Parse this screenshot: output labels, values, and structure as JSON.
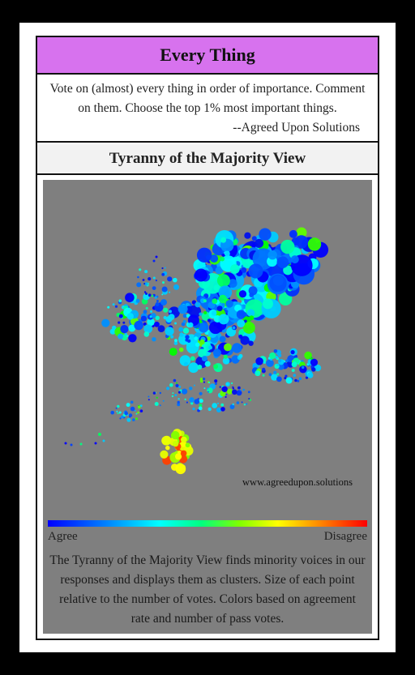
{
  "header": {
    "title": "Every Thing"
  },
  "intro": {
    "text": "Vote on (almost) every thing in order of importance. Comment on them. Choose the top 1% most important things.",
    "attribution": "--Agreed Upon Solutions"
  },
  "view": {
    "title": "Tyranny of the Majority View",
    "watermark": "www.agreedupon.solutions",
    "legend": {
      "left_label": "Agree",
      "right_label": "Disagree"
    },
    "explanation": "The Tyranny of the Majority View finds minority voices in our responses and displays them as clusters. Size of each point relative to the number of votes. Colors based on agreement rate and number of pass votes."
  },
  "colors": {
    "title_bar": "#d772ee",
    "panel_bg": "#7f7f7f",
    "scale": [
      "#0000ff",
      "#00ffff",
      "#00ff00",
      "#ffff00",
      "#ff0000"
    ]
  }
}
